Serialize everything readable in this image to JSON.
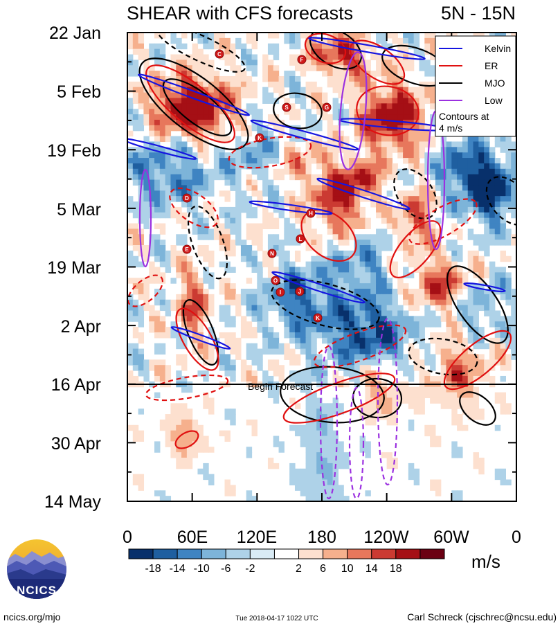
{
  "header": {
    "title": "SHEAR with CFS forecasts",
    "region": "5N - 15N"
  },
  "chart_data": {
    "type": "heatmap",
    "title": "SHEAR with CFS forecasts",
    "region": "5N - 15N",
    "x_tick_labels": [
      "0",
      "60E",
      "120E",
      "180",
      "120W",
      "60W",
      "0"
    ],
    "x_range": [
      0,
      360
    ],
    "y_tick_labels": [
      "22 Jan",
      "5 Feb",
      "19 Feb",
      "5 Mar",
      "19 Mar",
      "2 Apr",
      "16 Apr",
      "30 Apr",
      "14 May"
    ],
    "y_range": [
      "22 Jan",
      "14 May"
    ],
    "forecast_start": "16 Apr",
    "forecast_label": "Begin Forecast",
    "colorbar": {
      "labels": [
        "-18",
        "-14",
        "-10",
        "-6",
        "-2",
        "2",
        "6",
        "10",
        "14",
        "18"
      ],
      "colors": [
        "#08306b",
        "#1f5fa0",
        "#3f84c2",
        "#7db4d9",
        "#aed2e8",
        "#d9ebf5",
        "#ffffff",
        "#fde0cf",
        "#f6b08d",
        "#e7775c",
        "#cb3a32",
        "#a50f15",
        "#6b0013"
      ],
      "units": "m/s"
    },
    "legend": {
      "placement": "top-right",
      "entries": [
        {
          "name": "Kelvin",
          "color": "#1515e0"
        },
        {
          "name": "ER",
          "color": "#e01010"
        },
        {
          "name": "MJO",
          "color": "#000000"
        },
        {
          "name": "Low",
          "color": "#9b30e0"
        }
      ],
      "note": "Contours at 4 m/s"
    },
    "storm_markers": [
      "C",
      "F",
      "S",
      "G",
      "K",
      "D",
      "H",
      "L",
      "E",
      "N",
      "O",
      "I",
      "J",
      "K"
    ]
  },
  "footer": {
    "left": "ncics.org/mjo",
    "center": "Tue 2018-04-17 1022 UTC",
    "right": "Carl Schreck (cjschrec@ncsu.edu)",
    "logo": "NCICS"
  }
}
